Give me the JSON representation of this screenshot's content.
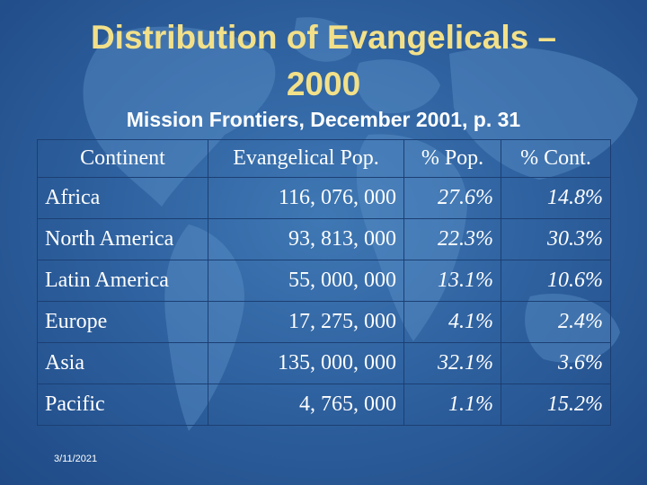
{
  "slide": {
    "title_line1": "Distribution of Evangelicals –",
    "title_line2": "2000",
    "subtitle": "Mission Frontiers, December 2001, p. 31",
    "footer_date": "3/11/2021"
  },
  "table": {
    "headers": [
      "Continent",
      "Evangelical Pop.",
      "% Pop.",
      "% Cont."
    ],
    "rows": [
      [
        "Africa",
        "116, 076, 000",
        "27.6%",
        "14.8%"
      ],
      [
        "North America",
        "93, 813, 000",
        "22.3%",
        "30.3%"
      ],
      [
        "Latin America",
        "55, 000, 000",
        "13.1%",
        "10.6%"
      ],
      [
        "Europe",
        "17, 275, 000",
        "4.1%",
        "2.4%"
      ],
      [
        "Asia",
        "135, 000, 000",
        "32.1%",
        "3.6%"
      ],
      [
        "Pacific",
        "4, 765, 000",
        "1.1%",
        "15.2%"
      ]
    ]
  },
  "colors": {
    "title": "#f2e089",
    "text": "#ffffff",
    "background": "#2f62a0",
    "map_land": "#5a90c8"
  }
}
